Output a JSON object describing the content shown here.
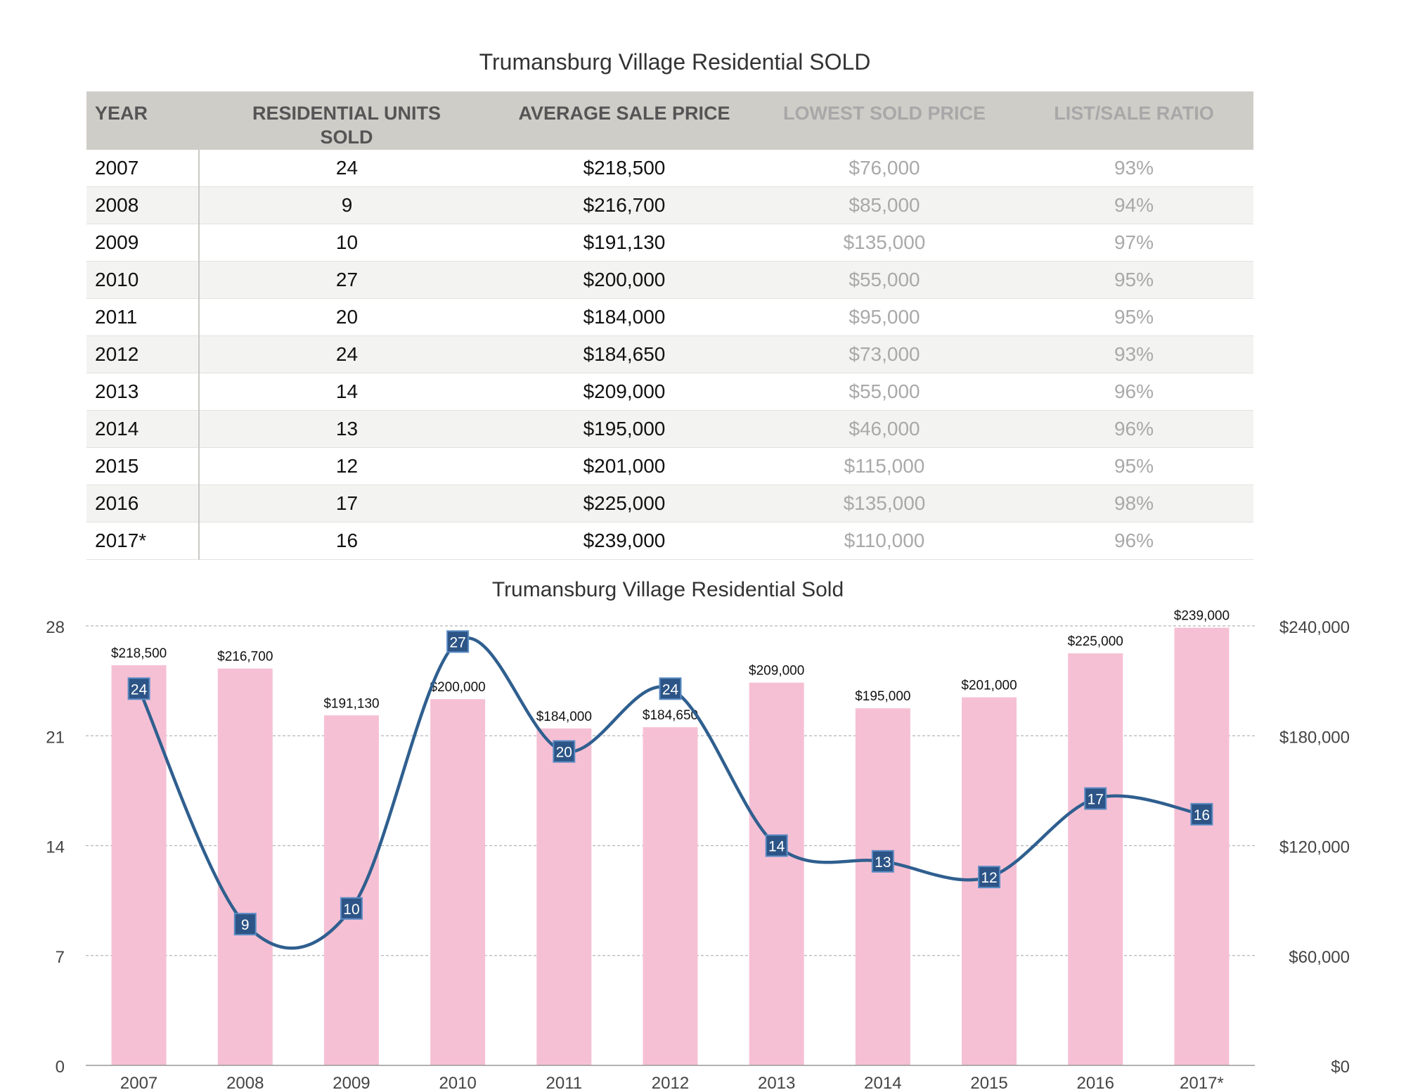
{
  "table": {
    "title": "Trumansburg Village Residential SOLD",
    "headers": {
      "year": "YEAR",
      "units_line1": "RESIDENTIAL UNITS",
      "units_line2": "SOLD",
      "avg": "AVERAGE SALE PRICE",
      "low": "LOWEST SOLD PRICE",
      "ratio": "LIST/SALE RATIO"
    },
    "rows": [
      {
        "year": "2007",
        "units": "24",
        "avg": "$218,500",
        "low": "$76,000",
        "ratio": "93%"
      },
      {
        "year": "2008",
        "units": "9",
        "avg": "$216,700",
        "low": "$85,000",
        "ratio": "94%"
      },
      {
        "year": "2009",
        "units": "10",
        "avg": "$191,130",
        "low": "$135,000",
        "ratio": "97%"
      },
      {
        "year": "2010",
        "units": "27",
        "avg": "$200,000",
        "low": "$55,000",
        "ratio": "95%"
      },
      {
        "year": "2011",
        "units": "20",
        "avg": "$184,000",
        "low": "$95,000",
        "ratio": "95%"
      },
      {
        "year": "2012",
        "units": "24",
        "avg": "$184,650",
        "low": "$73,000",
        "ratio": "93%"
      },
      {
        "year": "2013",
        "units": "14",
        "avg": "$209,000",
        "low": "$55,000",
        "ratio": "96%"
      },
      {
        "year": "2014",
        "units": "13",
        "avg": "$195,000",
        "low": "$46,000",
        "ratio": "96%"
      },
      {
        "year": "2015",
        "units": "12",
        "avg": "$201,000",
        "low": "$115,000",
        "ratio": "95%"
      },
      {
        "year": "2016",
        "units": "17",
        "avg": "$225,000",
        "low": "$135,000",
        "ratio": "98%"
      },
      {
        "year": "2017*",
        "units": "16",
        "avg": "$239,000",
        "low": "$110,000",
        "ratio": "96%"
      }
    ]
  },
  "chart_data": {
    "type": "bar",
    "title": "Trumansburg Village Residential Sold",
    "categories": [
      "2007",
      "2008",
      "2009",
      "2010",
      "2011",
      "2012",
      "2013",
      "2014",
      "2015",
      "2016",
      "2017*"
    ],
    "series": [
      {
        "kind": "bar",
        "axis": "right",
        "color": "#f6c0d4",
        "values": [
          218500,
          216700,
          191130,
          200000,
          184000,
          184650,
          209000,
          195000,
          201000,
          225000,
          239000
        ],
        "labels": [
          "$218,500",
          "$216,700",
          "$191,130",
          "$200,000",
          "$184,000",
          "$184,650",
          "$209,000",
          "$195,000",
          "$201,000",
          "$225,000",
          "$239,000"
        ]
      },
      {
        "kind": "line",
        "axis": "left",
        "color": "#2f5f8f",
        "values": [
          24,
          9,
          10,
          27,
          20,
          24,
          14,
          13,
          12,
          17,
          16
        ]
      }
    ],
    "y_left": {
      "min": 0,
      "max": 28,
      "ticks": [
        0,
        7,
        14,
        21,
        28
      ],
      "tick_labels": [
        "0",
        "7",
        "14",
        "21",
        "28"
      ]
    },
    "y_right": {
      "min": 0,
      "max": 240000,
      "ticks": [
        0,
        60000,
        120000,
        180000,
        240000
      ],
      "tick_labels": [
        "$0",
        "$60,000",
        "$120,000",
        "$180,000",
        "$240,000"
      ]
    },
    "grid": true,
    "legend": "none"
  }
}
